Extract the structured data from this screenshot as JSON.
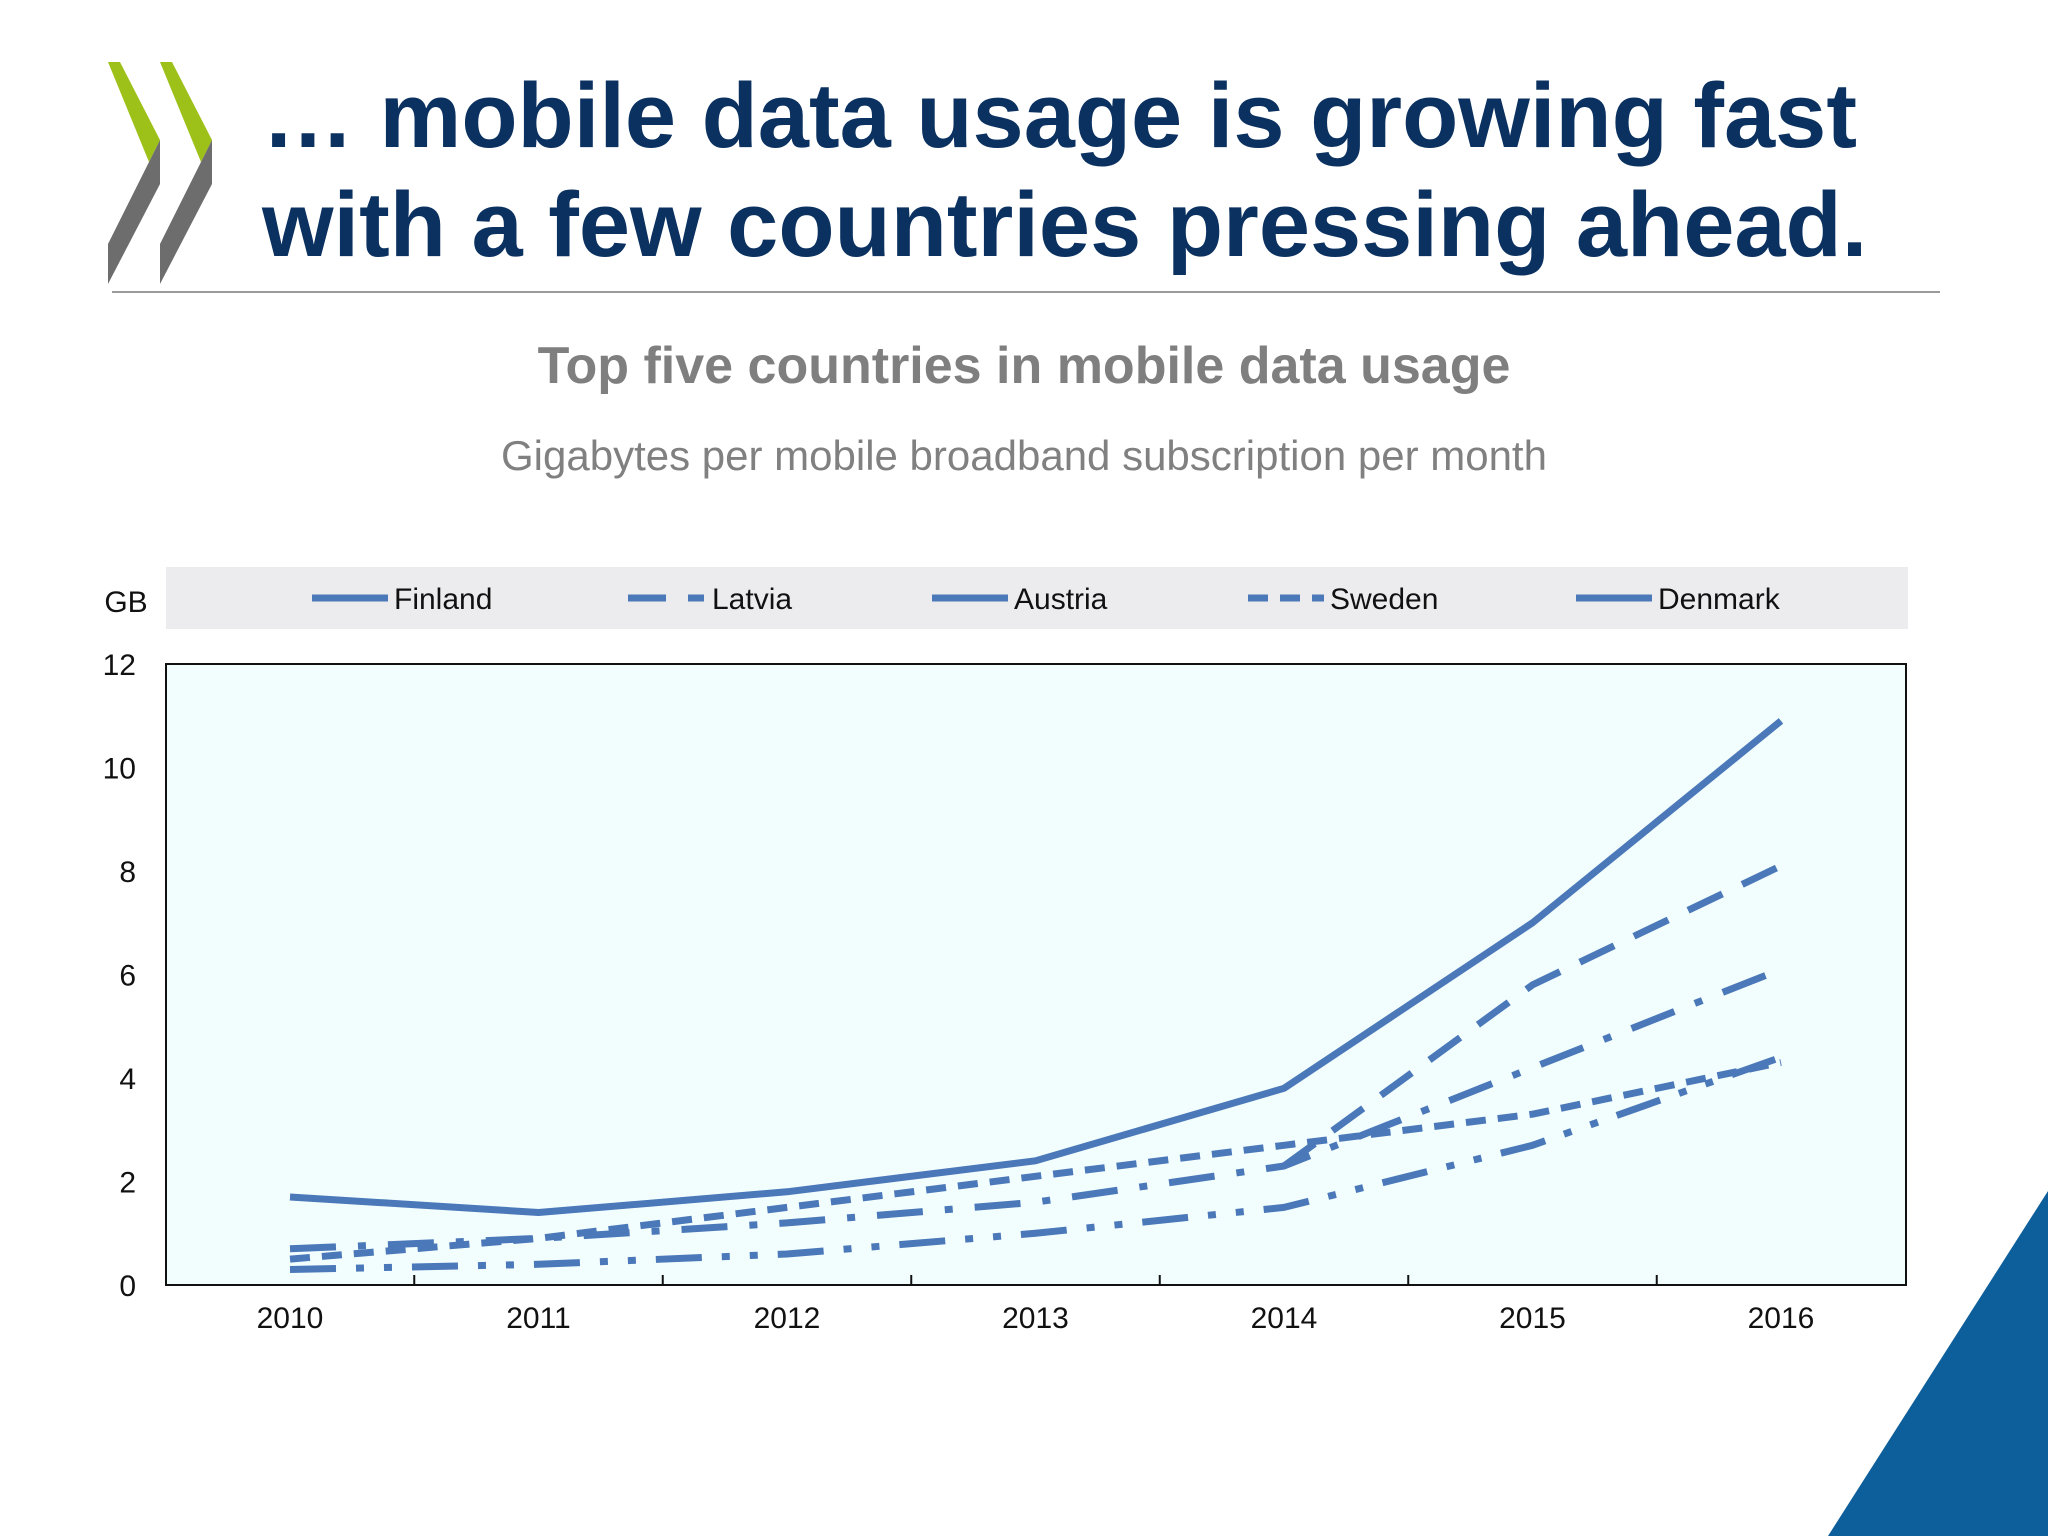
{
  "headline": {
    "line1": "… mobile data usage is growing fast",
    "line2": "with a few countries pressing ahead."
  },
  "logo_icon": "oecd-chevrons-icon",
  "colors": {
    "headline": "#0b3160",
    "logo_green": "#9ec11a",
    "logo_gray": "#6d6d6d",
    "series": "#4a78b8",
    "plot_background": "#f2fdfe",
    "legend_background": "#ececee",
    "corner_accent": "#0d5f9b"
  },
  "chart_data": {
    "type": "line",
    "title": "Top five countries in mobile data usage",
    "subtitle": "Gigabytes per mobile broadband subscription per month",
    "ylabel": "GB",
    "xlabel": "",
    "ylim": [
      0,
      12
    ],
    "yticks": [
      "0",
      "2",
      "4",
      "6",
      "8",
      "10",
      "12"
    ],
    "x": [
      "2010",
      "2011",
      "2012",
      "2013",
      "2014",
      "2015",
      "2016"
    ],
    "grid": false,
    "legend_position": "top",
    "series": [
      {
        "name": "Finland",
        "style": "solid",
        "values": [
          1.7,
          1.4,
          1.8,
          2.4,
          3.8,
          7.0,
          10.9
        ]
      },
      {
        "name": "Latvia",
        "style": "dashed",
        "values": [
          null,
          null,
          null,
          null,
          2.3,
          5.8,
          8.1
        ]
      },
      {
        "name": "Austria",
        "style": "dashdot",
        "values": [
          0.7,
          0.9,
          1.2,
          1.6,
          2.3,
          4.2,
          6.1
        ]
      },
      {
        "name": "Sweden",
        "style": "shortdash",
        "values": [
          0.5,
          0.9,
          1.5,
          2.1,
          2.7,
          3.3,
          4.3
        ]
      },
      {
        "name": "Denmark",
        "style": "dashdotdot",
        "values": [
          0.3,
          0.4,
          0.6,
          1.0,
          1.5,
          2.7,
          4.4
        ]
      }
    ]
  }
}
